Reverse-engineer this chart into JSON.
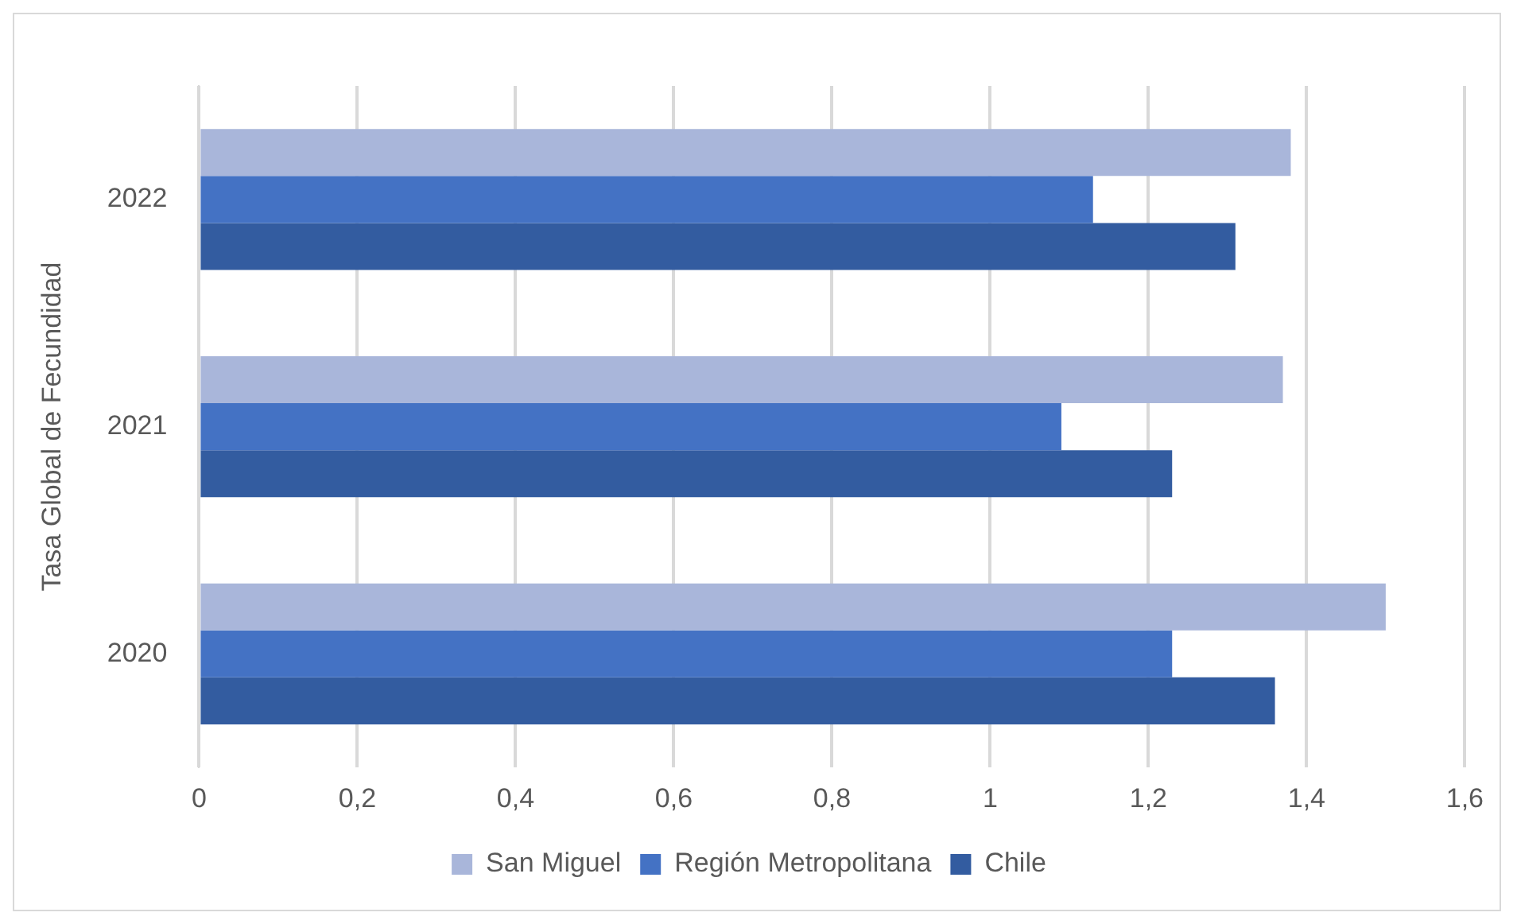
{
  "chart_data": {
    "type": "bar",
    "orientation": "horizontal",
    "ylabel": "Tasa Global de Fecundidad",
    "categories": [
      "2022",
      "2021",
      "2020"
    ],
    "series": [
      {
        "name": "San Miguel",
        "color": "#a9b6da",
        "values": [
          1.38,
          1.37,
          1.5
        ]
      },
      {
        "name": "Región Metropolitana",
        "color": "#4472c4",
        "values": [
          1.13,
          1.09,
          1.23
        ]
      },
      {
        "name": "Chile",
        "color": "#335ca0",
        "values": [
          1.31,
          1.23,
          1.36
        ]
      }
    ],
    "xlim": [
      0,
      1.6
    ],
    "xticks": [
      0,
      {
        "value": 0.2,
        "label": "0,2"
      },
      {
        "value": 0.4,
        "label": "0,4"
      },
      {
        "value": 0.6,
        "label": "0,6"
      },
      {
        "value": 0.8,
        "label": "0,8"
      },
      1,
      {
        "value": 1.2,
        "label": "1,2"
      },
      {
        "value": 1.4,
        "label": "1,4"
      },
      {
        "value": 1.6,
        "label": "1,6"
      }
    ],
    "grid": "x",
    "legend": "bottom"
  }
}
